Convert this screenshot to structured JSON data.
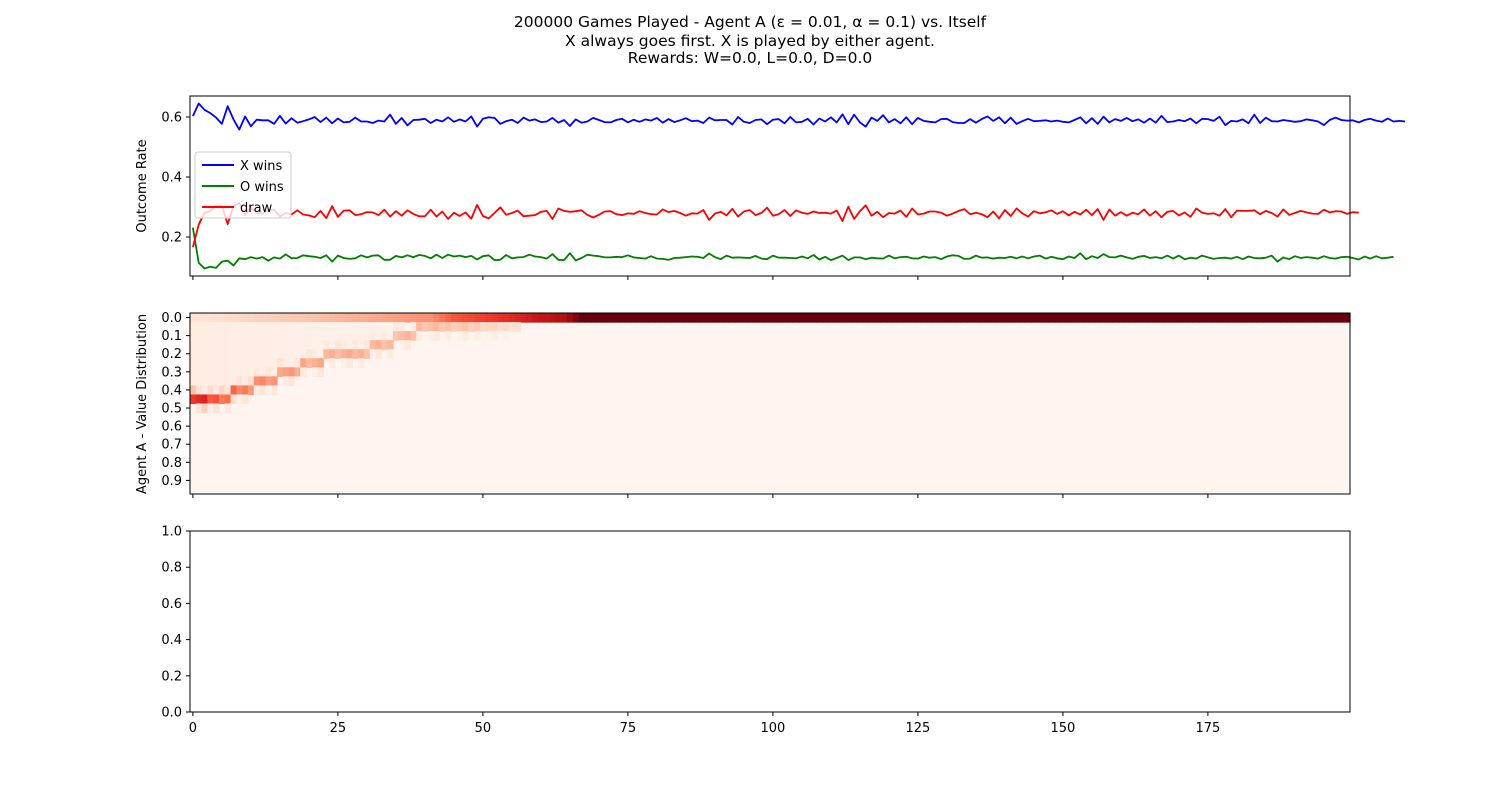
{
  "figure": {
    "title_lines": [
      "200000 Games Played - Agent A (ε = 0.01, α = 0.1) vs. Itself",
      "X always goes first.  X is played by either agent.",
      "Rewards: W=0.0, L=0.0, D=0.0"
    ]
  },
  "chart_data": [
    {
      "type": "line",
      "ylabel": "Outcome Rate",
      "xlim": [
        -0.5,
        199.5
      ],
      "ylim": [
        0.07,
        0.67
      ],
      "yticks": [
        0.2,
        0.4,
        0.6
      ],
      "ytick_labels": [
        "0.2",
        "0.4",
        "0.6"
      ],
      "legend_position": "upper-left",
      "series": [
        {
          "name": "X wins",
          "color": "#0000ff",
          "values": [
            0.603,
            0.645,
            0.624,
            0.613,
            0.598,
            0.577,
            0.636,
            0.592,
            0.558,
            0.602,
            0.569,
            0.591,
            0.589,
            0.589,
            0.577,
            0.604,
            0.578,
            0.596,
            0.581,
            0.586,
            0.592,
            0.6,
            0.583,
            0.598,
            0.579,
            0.595,
            0.582,
            0.584,
            0.598,
            0.585,
            0.585,
            0.58,
            0.588,
            0.585,
            0.608,
            0.577,
            0.597,
            0.572,
            0.59,
            0.591,
            0.594,
            0.58,
            0.591,
            0.585,
            0.599,
            0.584,
            0.592,
            0.585,
            0.602,
            0.568,
            0.594,
            0.599,
            0.597,
            0.577,
            0.586,
            0.591,
            0.58,
            0.598,
            0.588,
            0.592,
            0.583,
            0.585,
            0.597,
            0.581,
            0.59,
            0.57,
            0.592,
            0.581,
            0.585,
            0.597,
            0.59,
            0.583,
            0.582,
            0.59,
            0.594,
            0.582,
            0.591,
            0.584,
            0.592,
            0.588,
            0.597,
            0.581,
            0.593,
            0.583,
            0.589,
            0.596,
            0.586,
            0.588,
            0.58,
            0.598,
            0.589,
            0.59,
            0.59,
            0.575,
            0.6,
            0.584,
            0.58,
            0.59,
            0.592,
            0.576,
            0.591,
            0.593,
            0.579,
            0.6,
            0.582,
            0.584,
            0.594,
            0.575,
            0.595,
            0.585,
            0.599,
            0.582,
            0.609,
            0.576,
            0.608,
            0.582,
            0.568,
            0.598,
            0.587,
            0.606,
            0.582,
            0.593,
            0.579,
            0.599,
            0.576,
            0.597,
            0.587,
            0.584,
            0.582,
            0.593,
            0.594,
            0.583,
            0.58,
            0.58,
            0.593,
            0.581,
            0.593,
            0.602,
            0.587,
            0.599,
            0.579,
            0.598,
            0.577,
            0.586,
            0.594,
            0.586,
            0.587,
            0.589,
            0.585,
            0.588,
            0.584,
            0.582,
            0.59,
            0.599,
            0.579,
            0.596,
            0.577,
            0.601,
            0.582,
            0.593,
            0.587,
            0.597,
            0.586,
            0.592,
            0.581,
            0.595,
            0.581,
            0.604,
            0.583,
            0.585,
            0.59,
            0.586,
            0.595,
            0.579,
            0.594,
            0.593,
            0.587,
            0.601,
            0.573,
            0.587,
            0.585,
            0.592,
            0.579,
            0.608,
            0.58,
            0.598,
            0.586,
            0.585,
            0.59,
            0.587,
            0.584,
            0.586,
            0.592,
            0.589,
            0.585,
            0.573,
            0.59,
            0.598,
            0.59,
            0.588,
            0.589,
            0.582,
            0.59,
            0.594,
            0.588,
            0.584,
            0.595,
            0.585,
            0.587,
            0.585
          ]
        },
        {
          "name": "O wins",
          "color": "#008000",
          "values": [
            0.231,
            0.114,
            0.095,
            0.101,
            0.097,
            0.118,
            0.121,
            0.105,
            0.129,
            0.126,
            0.133,
            0.128,
            0.133,
            0.121,
            0.132,
            0.128,
            0.142,
            0.129,
            0.13,
            0.139,
            0.136,
            0.134,
            0.13,
            0.139,
            0.118,
            0.138,
            0.13,
            0.127,
            0.129,
            0.139,
            0.132,
            0.138,
            0.139,
            0.124,
            0.124,
            0.137,
            0.132,
            0.139,
            0.133,
            0.14,
            0.137,
            0.129,
            0.141,
            0.13,
            0.141,
            0.135,
            0.138,
            0.133,
            0.137,
            0.125,
            0.136,
            0.139,
            0.123,
            0.124,
            0.14,
            0.129,
            0.132,
            0.133,
            0.141,
            0.135,
            0.133,
            0.128,
            0.143,
            0.124,
            0.123,
            0.146,
            0.122,
            0.13,
            0.141,
            0.138,
            0.136,
            0.132,
            0.132,
            0.134,
            0.133,
            0.139,
            0.132,
            0.13,
            0.128,
            0.136,
            0.128,
            0.127,
            0.124,
            0.13,
            0.131,
            0.133,
            0.135,
            0.134,
            0.13,
            0.145,
            0.133,
            0.126,
            0.138,
            0.131,
            0.132,
            0.131,
            0.13,
            0.137,
            0.128,
            0.126,
            0.138,
            0.131,
            0.131,
            0.13,
            0.129,
            0.135,
            0.129,
            0.14,
            0.125,
            0.134,
            0.123,
            0.13,
            0.138,
            0.123,
            0.132,
            0.132,
            0.126,
            0.131,
            0.129,
            0.128,
            0.138,
            0.129,
            0.133,
            0.134,
            0.129,
            0.128,
            0.135,
            0.131,
            0.133,
            0.126,
            0.135,
            0.139,
            0.137,
            0.127,
            0.128,
            0.138,
            0.131,
            0.132,
            0.128,
            0.131,
            0.13,
            0.134,
            0.129,
            0.135,
            0.129,
            0.135,
            0.138,
            0.128,
            0.134,
            0.129,
            0.126,
            0.135,
            0.13,
            0.146,
            0.126,
            0.136,
            0.13,
            0.143,
            0.133,
            0.132,
            0.138,
            0.132,
            0.127,
            0.134,
            0.137,
            0.13,
            0.133,
            0.129,
            0.138,
            0.128,
            0.138,
            0.126,
            0.131,
            0.128,
            0.138,
            0.132,
            0.127,
            0.13,
            0.131,
            0.128,
            0.134,
            0.126,
            0.135,
            0.13,
            0.129,
            0.131,
            0.138,
            0.118,
            0.132,
            0.126,
            0.136,
            0.13,
            0.133,
            0.131,
            0.128,
            0.136,
            0.13,
            0.128,
            0.133,
            0.134,
            0.13,
            0.125,
            0.135,
            0.128,
            0.136,
            0.129,
            0.131,
            0.134
          ]
        },
        {
          "name": "draw",
          "color": "#ff0000",
          "values": [
            0.166,
            0.241,
            0.281,
            0.286,
            0.305,
            0.305,
            0.243,
            0.303,
            0.313,
            0.272,
            0.298,
            0.281,
            0.278,
            0.29,
            0.291,
            0.268,
            0.28,
            0.275,
            0.289,
            0.275,
            0.272,
            0.266,
            0.287,
            0.263,
            0.303,
            0.267,
            0.288,
            0.289,
            0.273,
            0.276,
            0.283,
            0.282,
            0.273,
            0.291,
            0.268,
            0.286,
            0.271,
            0.289,
            0.277,
            0.269,
            0.269,
            0.291,
            0.268,
            0.285,
            0.26,
            0.281,
            0.27,
            0.282,
            0.261,
            0.307,
            0.27,
            0.262,
            0.28,
            0.299,
            0.274,
            0.28,
            0.288,
            0.269,
            0.271,
            0.273,
            0.284,
            0.287,
            0.26,
            0.295,
            0.287,
            0.284,
            0.286,
            0.289,
            0.274,
            0.265,
            0.274,
            0.285,
            0.286,
            0.276,
            0.273,
            0.279,
            0.277,
            0.286,
            0.28,
            0.276,
            0.275,
            0.292,
            0.283,
            0.287,
            0.28,
            0.271,
            0.279,
            0.278,
            0.29,
            0.257,
            0.278,
            0.284,
            0.272,
            0.294,
            0.268,
            0.285,
            0.29,
            0.273,
            0.28,
            0.298,
            0.271,
            0.276,
            0.29,
            0.27,
            0.289,
            0.281,
            0.277,
            0.285,
            0.28,
            0.281,
            0.278,
            0.288,
            0.253,
            0.301,
            0.26,
            0.286,
            0.306,
            0.271,
            0.284,
            0.266,
            0.28,
            0.278,
            0.288,
            0.267,
            0.295,
            0.275,
            0.278,
            0.285,
            0.285,
            0.281,
            0.271,
            0.278,
            0.287,
            0.293,
            0.276,
            0.281,
            0.276,
            0.266,
            0.285,
            0.262,
            0.29,
            0.27,
            0.295,
            0.279,
            0.268,
            0.286,
            0.279,
            0.282,
            0.289,
            0.277,
            0.286,
            0.272,
            0.284,
            0.275,
            0.291,
            0.273,
            0.293,
            0.257,
            0.292,
            0.271,
            0.283,
            0.271,
            0.281,
            0.276,
            0.292,
            0.271,
            0.286,
            0.266,
            0.284,
            0.287,
            0.272,
            0.282,
            0.267,
            0.295,
            0.281,
            0.277,
            0.279,
            0.271,
            0.293,
            0.266,
            0.288,
            0.287,
            0.287,
            0.289,
            0.276,
            0.287,
            0.28,
            0.268,
            0.292,
            0.274,
            0.28,
            0.287,
            0.282,
            0.278,
            0.277,
            0.291,
            0.282,
            0.286,
            0.285,
            0.277,
            0.283,
            0.281
          ]
        }
      ]
    },
    {
      "type": "heatmap",
      "ylabel": "Agent A - Value Distribution",
      "colormap": "Reds",
      "row_labels": [
        "0.0",
        "0.1",
        "0.2",
        "0.3",
        "0.4",
        "0.5",
        "0.6",
        "0.7",
        "0.8",
        "0.9"
      ],
      "rows_per_label": 2,
      "value_bins": 20,
      "columns": 200,
      "ridge": [
        {
          "column": 0,
          "bin": 9,
          "intensity": 0.75
        },
        {
          "column": 4,
          "bin": 9,
          "intensity": 0.55
        },
        {
          "column": 8,
          "bin": 8,
          "intensity": 0.45
        },
        {
          "column": 12,
          "bin": 7,
          "intensity": 0.38
        },
        {
          "column": 16,
          "bin": 6,
          "intensity": 0.34
        },
        {
          "column": 20,
          "bin": 5,
          "intensity": 0.3
        },
        {
          "column": 24,
          "bin": 4,
          "intensity": 0.28
        },
        {
          "column": 28,
          "bin": 4,
          "intensity": 0.28
        },
        {
          "column": 32,
          "bin": 3,
          "intensity": 0.26
        },
        {
          "column": 36,
          "bin": 2,
          "intensity": 0.25
        },
        {
          "column": 40,
          "bin": 1,
          "intensity": 0.25
        },
        {
          "column": 44,
          "bin": 1,
          "intensity": 0.22
        },
        {
          "column": 48,
          "bin": 1,
          "intensity": 0.2
        },
        {
          "column": 52,
          "bin": 1,
          "intensity": 0.15
        },
        {
          "column": 56,
          "bin": 1,
          "intensity": 0.12
        }
      ],
      "top_bin_intensity": [
        {
          "column": 0,
          "intensity": 0.1
        },
        {
          "column": 20,
          "intensity": 0.22
        },
        {
          "column": 41,
          "intensity": 0.38
        },
        {
          "column": 45,
          "intensity": 0.55
        },
        {
          "column": 56,
          "intensity": 0.7
        },
        {
          "column": 64,
          "intensity": 0.85
        },
        {
          "column": 67,
          "intensity": 1.0
        },
        {
          "column": 199,
          "intensity": 1.0
        }
      ]
    },
    {
      "type": "line",
      "series": [],
      "ylim": [
        0.0,
        1.0
      ],
      "yticks": [
        0.0,
        0.2,
        0.4,
        0.6,
        0.8,
        1.0
      ],
      "ytick_labels": [
        "0.0",
        "0.2",
        "0.4",
        "0.6",
        "0.8",
        "1.0"
      ],
      "xticks": [
        0,
        25,
        50,
        75,
        100,
        125,
        150,
        175
      ],
      "xtick_labels": [
        "0",
        "25",
        "50",
        "75",
        "100",
        "125",
        "150",
        "175"
      ]
    }
  ]
}
